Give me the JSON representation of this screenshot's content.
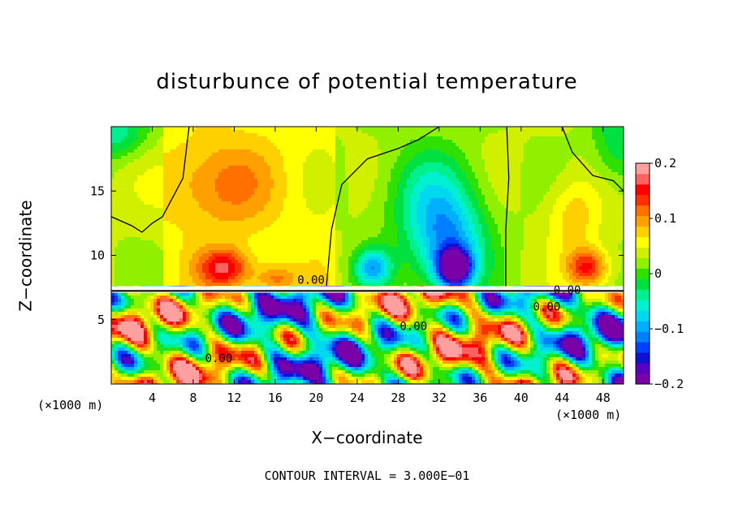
{
  "chart_data": {
    "type": "heatmap",
    "title": "disturbunce of potential temperature",
    "xlabel": "X−coordinate",
    "ylabel": "Z−coordinate",
    "x_unit_label_left": "(×1000 m)",
    "x_unit_label_right": "(×1000 m)",
    "footer": "CONTOUR INTERVAL = 3.000E−01",
    "xlim": [
      0,
      50
    ],
    "ylim": [
      0,
      20
    ],
    "xticks": [
      4,
      8,
      12,
      16,
      20,
      24,
      28,
      32,
      36,
      40,
      44,
      48
    ],
    "xtick_labels": [
      "4",
      "8",
      "12",
      "16",
      "20",
      "24",
      "28",
      "32",
      "36",
      "40",
      "44",
      "48"
    ],
    "yticks": [
      5,
      10,
      15
    ],
    "ytick_labels": [
      "5",
      "10",
      "15"
    ],
    "colorbar": {
      "range": [
        -0.2,
        0.2
      ],
      "ticks": [
        0.2,
        0.1,
        0,
        -0.1,
        -0.2
      ],
      "tick_labels": [
        "0.2",
        "0.1",
        "0",
        "−0.1",
        "−0.2"
      ],
      "colors": [
        "#7a00a8",
        "#5a00c0",
        "#1010d0",
        "#0040ff",
        "#0080ff",
        "#00b0ff",
        "#00d8f0",
        "#00f0d0",
        "#00f090",
        "#00e040",
        "#30e000",
        "#90f000",
        "#d0f000",
        "#ffff00",
        "#ffd000",
        "#ffa000",
        "#ff7000",
        "#ff3000",
        "#ff0000",
        "#ff6060",
        "#ffa0a0"
      ]
    },
    "contour_labels": [
      {
        "text": "0.00",
        "x": 19.5,
        "y": 7.8
      },
      {
        "text": "0.00",
        "x": 44.5,
        "y": 7.0
      },
      {
        "text": "0.00",
        "x": 42.5,
        "y": 5.7
      },
      {
        "text": "0.00",
        "x": 29.5,
        "y": 4.2
      },
      {
        "text": "0.00",
        "x": 10.5,
        "y": 1.7
      }
    ],
    "features": [
      {
        "kind": "cold",
        "x": 33.5,
        "y": 9.0,
        "sx": 1.6,
        "sy": 1.4,
        "amp": -0.22
      },
      {
        "kind": "cold",
        "x": 33.0,
        "y": 10.5,
        "sx": 3.5,
        "sy": 3.8,
        "amp": -0.12
      },
      {
        "kind": "cold",
        "x": 31.0,
        "y": 14.5,
        "sx": 4.5,
        "sy": 4.0,
        "amp": -0.07
      },
      {
        "kind": "cold",
        "x": 25.5,
        "y": 9.0,
        "sx": 1.8,
        "sy": 1.5,
        "amp": -0.12
      },
      {
        "kind": "cold",
        "x": 0.5,
        "y": 19.5,
        "sx": 3.0,
        "sy": 2.0,
        "amp": -0.07
      },
      {
        "kind": "cold",
        "x": 49.5,
        "y": 19.0,
        "sx": 2.5,
        "sy": 3.5,
        "amp": -0.06
      },
      {
        "kind": "warm",
        "x": 11.0,
        "y": 9.0,
        "sx": 2.5,
        "sy": 1.5,
        "amp": 0.11
      },
      {
        "kind": "warm",
        "x": 16.0,
        "y": 8.2,
        "sx": 2.0,
        "sy": 1.0,
        "amp": 0.06
      },
      {
        "kind": "warm",
        "x": 10.5,
        "y": 15.5,
        "sx": 5.0,
        "sy": 3.5,
        "amp": 0.06
      },
      {
        "kind": "warm",
        "x": 46.5,
        "y": 9.0,
        "sx": 2.0,
        "sy": 1.5,
        "amp": 0.12
      },
      {
        "kind": "warm",
        "x": 45.0,
        "y": 13.0,
        "sx": 2.5,
        "sy": 3.0,
        "amp": 0.05
      }
    ]
  }
}
